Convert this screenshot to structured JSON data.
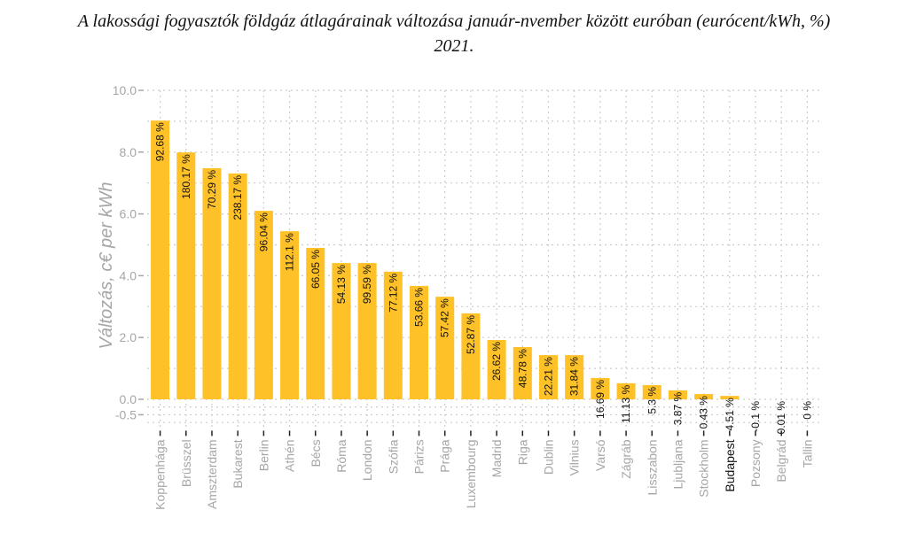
{
  "chart_data": {
    "type": "bar",
    "title_line1": "A lakossági fogyasztók földgáz átlagárainak változása január-nvember között euróban (eurócent/kWh, %)",
    "title_line2": "2021.",
    "xlabel": "",
    "ylabel": "Változás, c€ per kWh",
    "ylim": [
      -0.9,
      10.0
    ],
    "yticks": [
      {
        "value": 10.0,
        "label": "10.0"
      },
      {
        "value": 8.0,
        "label": "8.0"
      },
      {
        "value": 6.0,
        "label": "6.0"
      },
      {
        "value": 4.0,
        "label": "4.0"
      },
      {
        "value": 2.0,
        "label": "2.0"
      },
      {
        "value": 0.0,
        "label": "0.0"
      },
      {
        "value": -0.5,
        "label": "-0.5"
      }
    ],
    "grid": true,
    "bar_color": "#fec128",
    "highlight_category": "Budapest",
    "categories": [
      "Koppenhága",
      "Brüsszel",
      "Amszterdam",
      "Bukarest",
      "Berlin",
      "Athén",
      "Bécs",
      "Róma",
      "London",
      "Szófia",
      "Párizs",
      "Prága",
      "Luxembourg",
      "Madrid",
      "Riga",
      "Dublin",
      "Vilnius",
      "Varsó",
      "Zágráb",
      "Lisszabon",
      "Ljubljana",
      "Stockholm",
      "Budapest",
      "Pozsony",
      "Belgrád",
      "Tallin"
    ],
    "values": [
      9.02,
      7.99,
      7.48,
      7.31,
      6.1,
      5.44,
      4.9,
      4.41,
      4.41,
      4.13,
      3.67,
      3.32,
      2.78,
      1.92,
      1.69,
      1.43,
      1.43,
      0.69,
      0.52,
      0.46,
      0.29,
      0.17,
      0.11,
      0.0,
      0.0,
      0.0
    ],
    "data_labels": [
      "92.68 %",
      "180.17 %",
      "70.29 %",
      "238.17 %",
      "96.04 %",
      "112.1 %",
      "66.05 %",
      "54.13 %",
      "99.59 %",
      "77.12 %",
      "53.66 %",
      "57.42 %",
      "52.87 %",
      "26.62 %",
      "48.78 %",
      "22.21 %",
      "31.84 %",
      "16.69 %",
      "11.13 %",
      "5.3 %",
      "3.87 %",
      "0.43 %",
      "4.51 %",
      "-0.1 %",
      "0.01 %",
      "0 %"
    ]
  }
}
